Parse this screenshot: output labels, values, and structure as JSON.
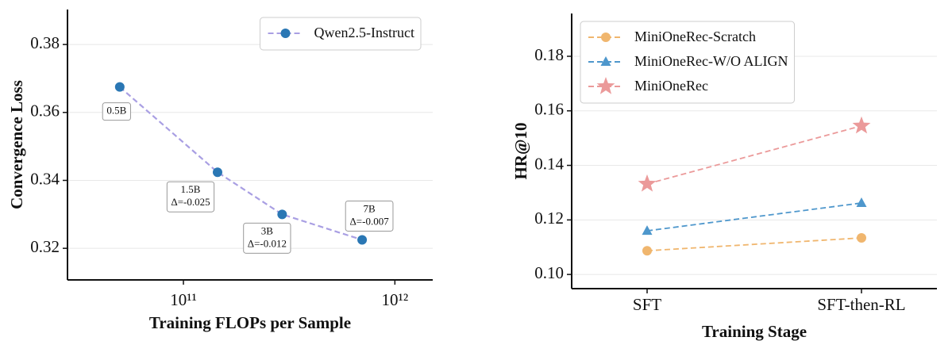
{
  "chart_data": [
    {
      "type": "line",
      "x_scale": "log",
      "xlabel": "Training FLOPs per Sample",
      "ylabel": "Convergence Loss",
      "x": [
        50000000000.0,
        145000000000.0,
        293000000000.0,
        700000000000.0
      ],
      "series": [
        {
          "name": "Qwen2.5-Instruct",
          "color": "#a99fe3",
          "marker_color": "#2a77b4",
          "marker": "circle",
          "values": [
            0.3675,
            0.3424,
            0.33,
            0.3225
          ],
          "point_labels": [
            [
              "0.5B"
            ],
            [
              "1.5B",
              "Δ=-0.025"
            ],
            [
              "3B",
              "Δ=-0.012"
            ],
            [
              "7B",
              "Δ=-0.007"
            ]
          ]
        }
      ],
      "xlim": [
        28300000000.0,
        1510000000000.0
      ],
      "xticks": [
        {
          "value": 100000000000.0,
          "label": "10¹¹"
        },
        {
          "value": 1000000000000.0,
          "label": "10¹²"
        }
      ],
      "ylim": [
        0.3107,
        0.3903
      ],
      "yticks": [
        0.32,
        0.34,
        0.36,
        0.38
      ],
      "grid": true,
      "legend": "upper right"
    },
    {
      "type": "line",
      "xlabel": "Training Stage",
      "ylabel": "HR@10",
      "categories": [
        "SFT",
        "SFT-then-RL"
      ],
      "series": [
        {
          "name": "MiniOneRec-Scratch",
          "color": "#f0b66e",
          "marker_color": "#f0b66e",
          "marker": "circle",
          "values": [
            0.1087,
            0.1134
          ]
        },
        {
          "name": "MiniOneRec-W/O ALIGN",
          "color": "#4e97cc",
          "marker_color": "#4e97cc",
          "marker": "triangle",
          "values": [
            0.116,
            0.1262
          ]
        },
        {
          "name": "MiniOneRec",
          "color": "#eb9a9a",
          "marker_color": "#eb9a9a",
          "marker": "star",
          "values": [
            0.1332,
            0.1545
          ]
        }
      ],
      "ylim": [
        0.0948,
        0.1957
      ],
      "yticks": [
        {
          "value": 0.1,
          "label": "0.10"
        },
        0.12,
        0.14,
        0.16,
        0.18
      ],
      "grid": true,
      "legend": "upper left"
    }
  ]
}
